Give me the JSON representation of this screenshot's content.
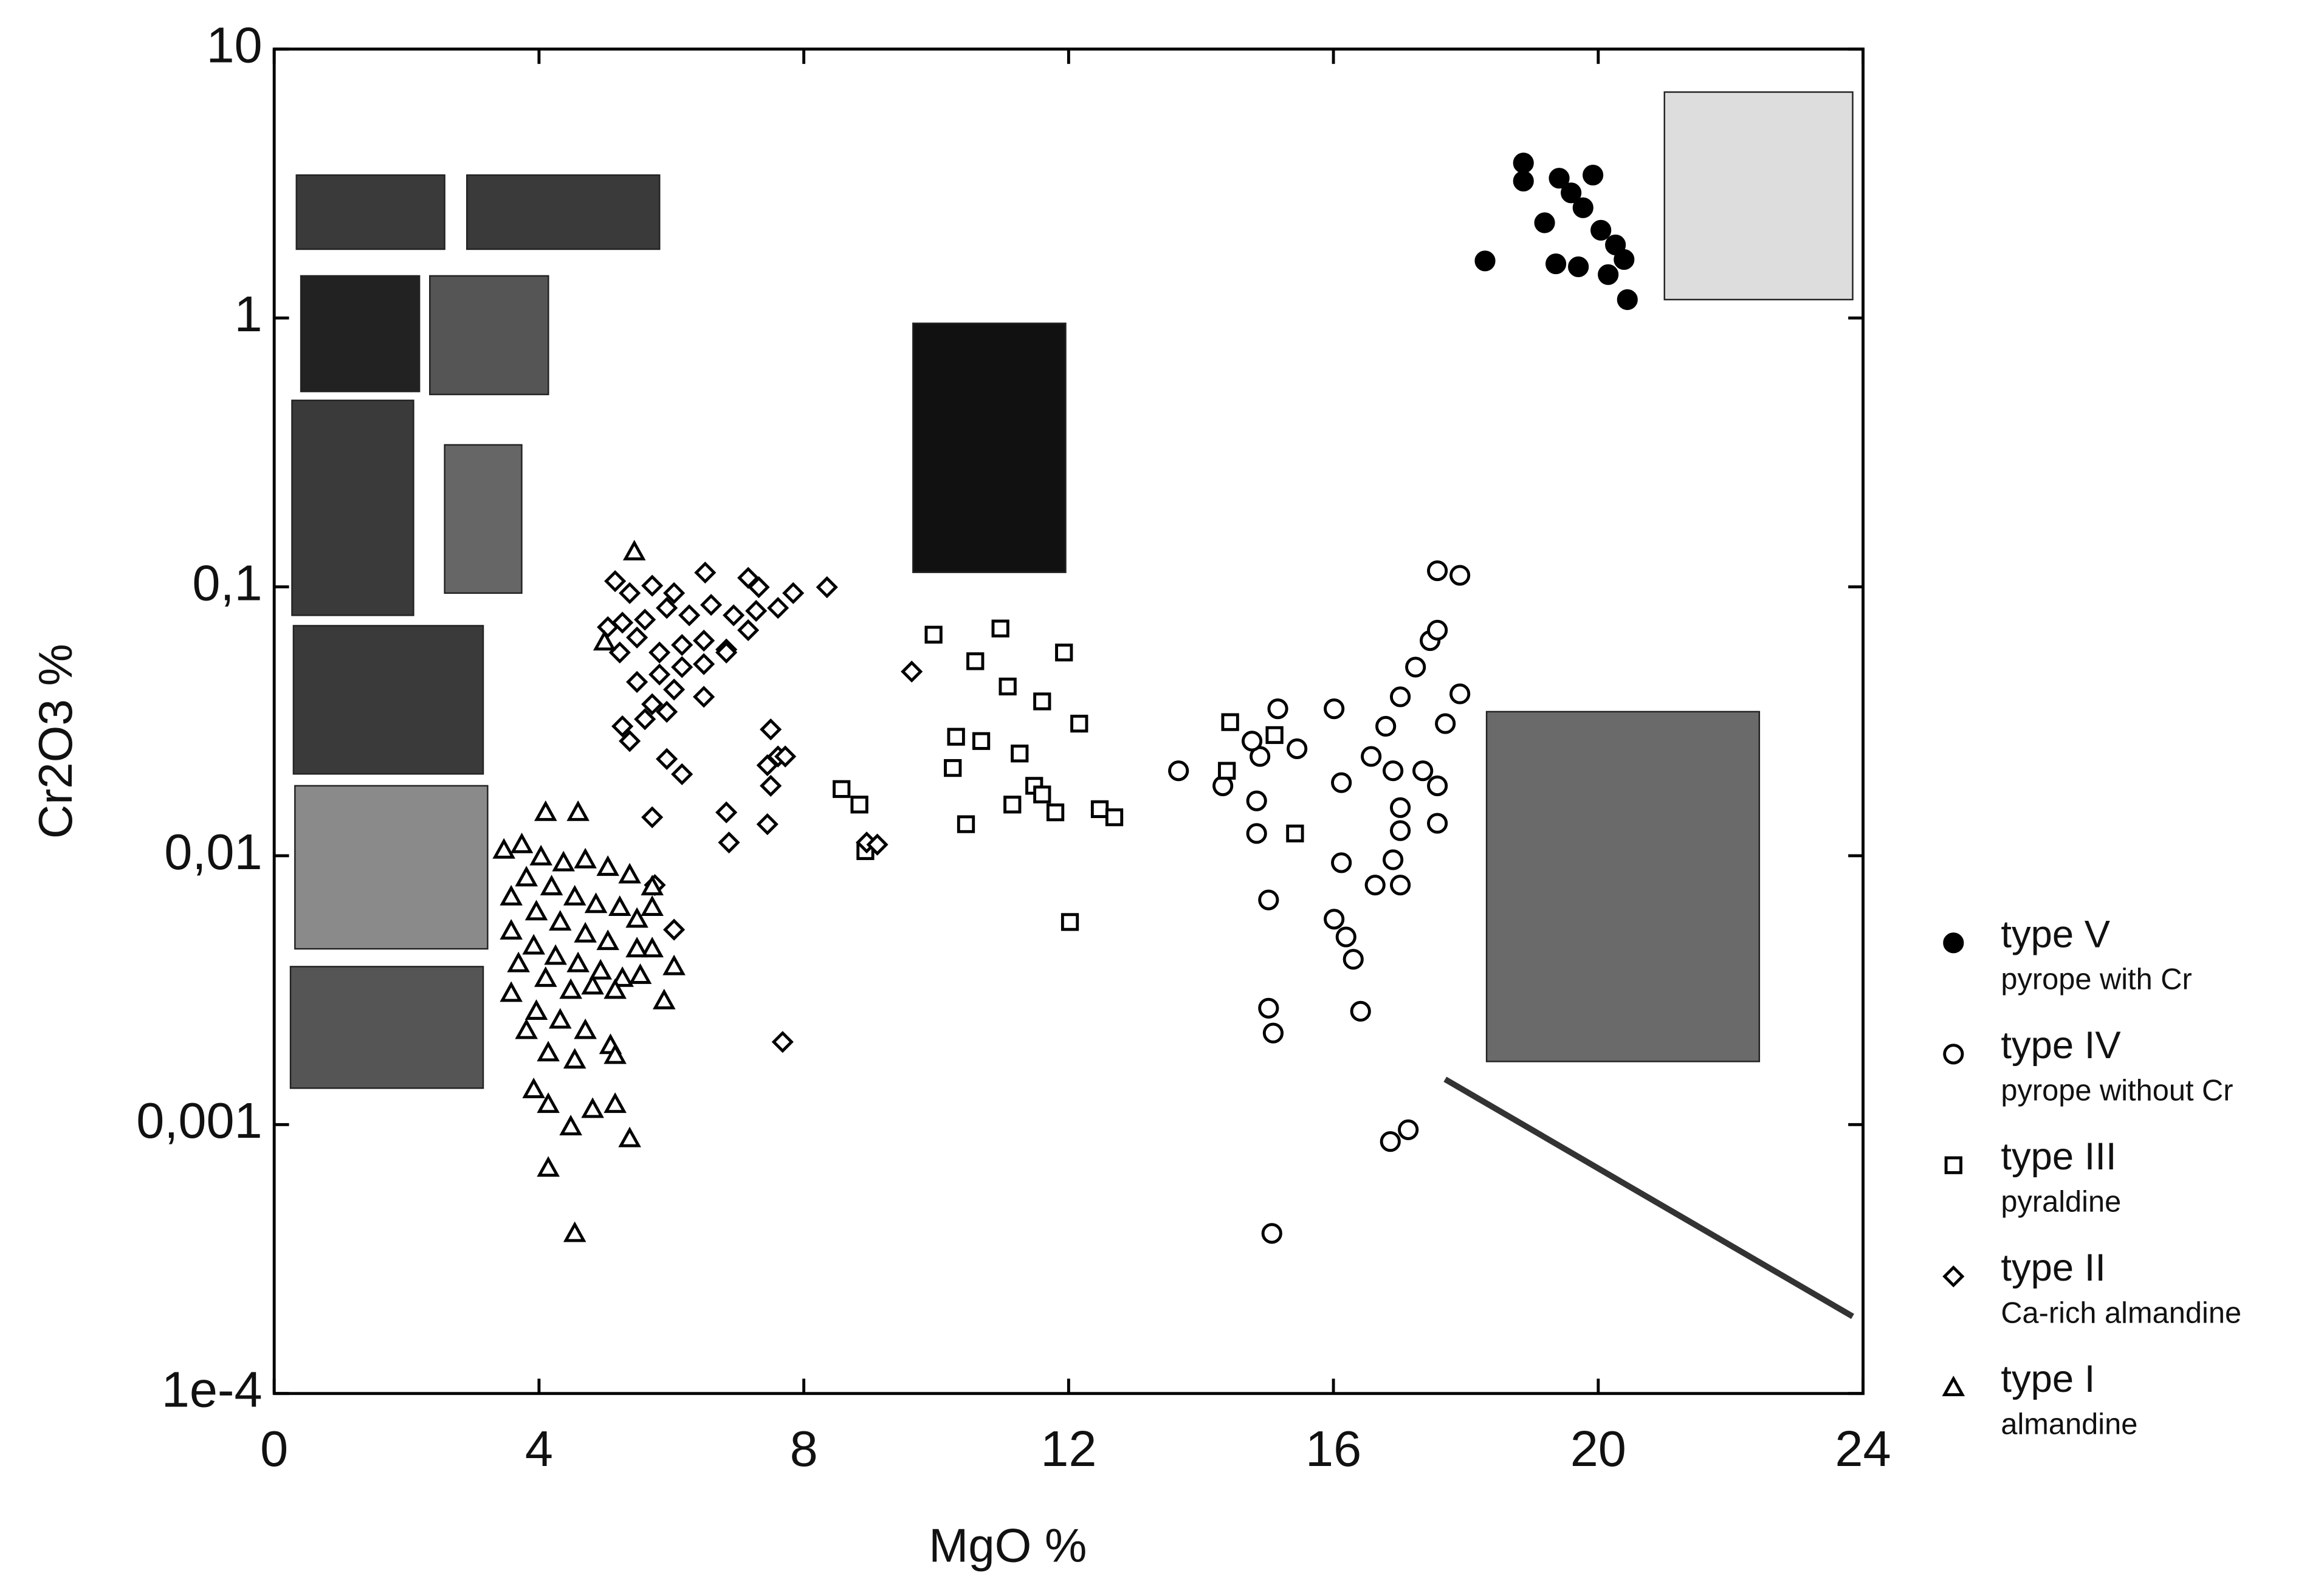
{
  "chart_data": {
    "type": "scatter",
    "x_label": "MgO %",
    "y_label": "Cr2O3 %",
    "xlim": [
      0,
      24
    ],
    "xticks": [
      0,
      4,
      8,
      12,
      16,
      20,
      24
    ],
    "ylim": [
      0.0001,
      10
    ],
    "yticks": [
      10,
      1,
      {
        "value": 0.1,
        "label": "0,1"
      },
      {
        "value": 0.01,
        "label": "0,01"
      },
      {
        "value": 0.001,
        "label": "0,001"
      },
      {
        "value": 0.0001,
        "label": "1e-4"
      }
    ],
    "y_log": true,
    "legend": "right",
    "series": [
      {
        "name": "type V",
        "description": "pyrope with Cr",
        "color": "#000000",
        "marker": "filled-circle",
        "x": [
          18.29,
          18.87,
          18.87,
          19.19,
          19.41,
          19.59,
          19.77,
          19.92,
          20.04,
          20.26,
          20.39,
          20.44,
          19.36,
          19.7,
          20.15
        ],
        "values": [
          1.63,
          3.77,
          3.23,
          2.26,
          3.31,
          2.92,
          2.57,
          3.4,
          2.12,
          1.87,
          1.65,
          1.17,
          1.59,
          1.55,
          1.45
        ]
      },
      {
        "name": "type IV",
        "description": "pyrope without Cr",
        "color": "#000000",
        "marker": "circle",
        "x": [
          13.66,
          14.33,
          14.89,
          15.16,
          15.45,
          14.84,
          14.84,
          15.02,
          15.02,
          15.09,
          15.07,
          16.01,
          16.12,
          16.12,
          16.01,
          16.19,
          16.3,
          16.41,
          16.57,
          16.79,
          17.01,
          17.24,
          17.46,
          17.57,
          17.57,
          17.91,
          16.9,
          17.01,
          17.01,
          16.9,
          17.01,
          16.63,
          17.35,
          17.57,
          17.57,
          17.69,
          17.91,
          17.13,
          16.86,
          14.77
        ],
        "values": [
          0.0207,
          0.0182,
          0.0234,
          0.0352,
          0.025,
          0.016,
          0.0121,
          0.00685,
          0.00271,
          0.00219,
          0.000394,
          0.0352,
          0.0187,
          0.00942,
          0.00581,
          0.00499,
          0.00412,
          0.00264,
          0.0234,
          0.0303,
          0.039,
          0.0503,
          0.0631,
          0.069,
          0.1148,
          0.1104,
          0.0207,
          0.0151,
          0.0124,
          0.00966,
          0.00778,
          0.00778,
          0.0207,
          0.0182,
          0.0132,
          0.031,
          0.04,
          0.000957,
          0.000865,
          0.0267
        ]
      },
      {
        "name": "type III",
        "description": "pyraldine",
        "color": "#000000",
        "marker": "square",
        "x": [
          9.96,
          10.97,
          10.59,
          11.93,
          11.08,
          11.6,
          10.3,
          10.68,
          10.25,
          11.26,
          11.48,
          11.6,
          11.15,
          12.16,
          11.8,
          10.45,
          12.47,
          12.69,
          8.57,
          8.84,
          8.93,
          12.02,
          14.44,
          14.39,
          15.42,
          15.11
        ],
        "values": [
          0.0664,
          0.07,
          0.0529,
          0.057,
          0.0426,
          0.0375,
          0.0277,
          0.0267,
          0.0212,
          0.024,
          0.0182,
          0.0169,
          0.0155,
          0.031,
          0.0145,
          0.0131,
          0.0149,
          0.0139,
          0.0177,
          0.0155,
          0.0104,
          0.00567,
          0.0314,
          0.0207,
          0.0121,
          0.0281
        ]
      },
      {
        "name": "type II",
        "description": "Ca-rich almandine",
        "color": "#000000",
        "marker": "diamond",
        "x": [
          5.15,
          5.37,
          5.71,
          6.04,
          6.51,
          7.16,
          7.32,
          7.84,
          8.35,
          5.26,
          5.6,
          5.93,
          6.27,
          6.6,
          6.94,
          7.28,
          7.61,
          5.22,
          5.48,
          5.82,
          6.16,
          6.49,
          6.83,
          7.16,
          5.48,
          5.82,
          6.16,
          6.49,
          6.83,
          5.71,
          6.04,
          6.49,
          5.26,
          5.6,
          5.93,
          9.63,
          5.93,
          6.16,
          7.5,
          5.71,
          7.45,
          7.61,
          7.72,
          7.5,
          6.83,
          6.87,
          7.45,
          6.04,
          5.75,
          7.68,
          8.95,
          9.11,
          5.04,
          5.37
        ],
        "values": [
          0.105,
          0.0948,
          0.101,
          0.0948,
          0.113,
          0.108,
          0.0997,
          0.0948,
          0.0997,
          0.0736,
          0.0755,
          0.0835,
          0.0784,
          0.0857,
          0.0784,
          0.0814,
          0.0835,
          0.057,
          0.0648,
          0.057,
          0.0608,
          0.0631,
          0.0585,
          0.069,
          0.0443,
          0.0472,
          0.0503,
          0.0516,
          0.057,
          0.0366,
          0.0415,
          0.039,
          0.0303,
          0.0322,
          0.0343,
          0.0484,
          0.0229,
          0.0201,
          0.0295,
          0.0139,
          0.0217,
          0.0234,
          0.0234,
          0.0182,
          0.0145,
          0.0112,
          0.0131,
          0.00531,
          0.00778,
          0.00203,
          0.0112,
          0.011,
          0.0708,
          0.0267
        ]
      },
      {
        "name": "type I",
        "description": "almandine",
        "color": "#000000",
        "marker": "triangle",
        "x": [
          5.44,
          4.99,
          4.1,
          4.59,
          3.47,
          3.74,
          4.03,
          4.37,
          4.7,
          5.04,
          5.37,
          5.71,
          3.81,
          4.19,
          4.54,
          4.86,
          5.22,
          3.58,
          3.96,
          4.32,
          4.7,
          5.04,
          5.48,
          3.58,
          3.92,
          4.25,
          4.59,
          4.93,
          5.26,
          5.71,
          3.69,
          4.1,
          4.48,
          4.81,
          5.15,
          5.53,
          6.04,
          3.58,
          3.96,
          4.32,
          4.7,
          5.08,
          5.89,
          3.81,
          4.14,
          4.54,
          3.92,
          4.14,
          4.48,
          4.81,
          5.15,
          5.37,
          4.14,
          4.54,
          5.15,
          5.48,
          5.71
        ],
        "values": [
          0.135,
          0.0624,
          0.0145,
          0.0145,
          0.0105,
          0.011,
          0.00991,
          0.00942,
          0.00966,
          0.00906,
          0.00849,
          0.00767,
          0.00828,
          0.00767,
          0.00703,
          0.00659,
          0.00643,
          0.00703,
          0.00619,
          0.00567,
          0.00512,
          0.0048,
          0.00581,
          0.00525,
          0.00462,
          0.00423,
          0.00397,
          0.00373,
          0.0035,
          0.00451,
          0.00397,
          0.0035,
          0.00316,
          0.00328,
          0.00316,
          0.00359,
          0.00387,
          0.00308,
          0.00264,
          0.00245,
          0.00224,
          0.00197,
          0.00289,
          0.00224,
          0.00185,
          0.00174,
          0.00135,
          0.00119,
          0.000982,
          0.00114,
          0.00119,
          0.000887,
          0.000689,
          0.000394,
          0.00181,
          0.00451,
          0.00643
        ]
      }
    ]
  }
}
